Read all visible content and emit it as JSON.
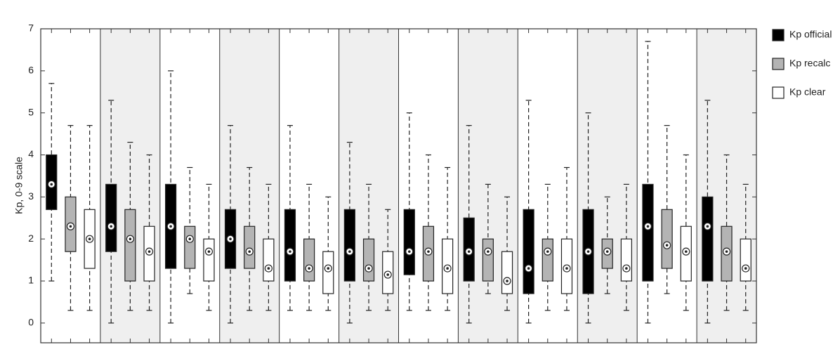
{
  "chart_data": {
    "type": "box",
    "ylabel": "Kp, 0-9 scale",
    "categories": [
      null,
      null,
      null,
      null,
      null,
      null,
      null,
      null,
      null,
      null,
      null,
      null
    ],
    "ylim": [
      -0.47,
      7
    ],
    "yticks": [
      0,
      1,
      2,
      3,
      4,
      5,
      6,
      7
    ],
    "legend": "right",
    "series": [
      {
        "name": "Kp official",
        "color": "#000000",
        "min": [
          1.0,
          0,
          0,
          0,
          0.3,
          0,
          0.3,
          0,
          0,
          0,
          0,
          0
        ],
        "q1": [
          2.7,
          1.7,
          1.3,
          1.3,
          1.0,
          1.0,
          1.15,
          1.0,
          0.7,
          0.7,
          1.0,
          1.0
        ],
        "median": [
          3.3,
          2.3,
          2.3,
          2.0,
          1.7,
          1.7,
          1.7,
          1.7,
          1.3,
          1.7,
          2.3,
          2.3
        ],
        "q3": [
          4.0,
          3.3,
          3.3,
          2.7,
          2.7,
          2.7,
          2.7,
          2.5,
          2.7,
          2.7,
          3.3,
          3.0
        ],
        "max": [
          5.7,
          5.3,
          6.0,
          4.7,
          4.7,
          4.3,
          5.0,
          4.7,
          5.3,
          5.0,
          6.7,
          5.3
        ]
      },
      {
        "name": "Kp recalc",
        "color": "#b4b4b4",
        "min": [
          0.3,
          0.3,
          0.7,
          0.3,
          0.3,
          0.3,
          0.3,
          0.7,
          0.3,
          0.7,
          0.7,
          0.3
        ],
        "q1": [
          1.7,
          1.0,
          1.3,
          1.3,
          1.0,
          1.0,
          1.0,
          1.0,
          1.0,
          1.3,
          1.3,
          1.0
        ],
        "median": [
          2.3,
          2.0,
          2.0,
          1.7,
          1.3,
          1.3,
          1.7,
          1.7,
          1.7,
          1.7,
          1.85,
          1.7
        ],
        "q3": [
          3.0,
          2.7,
          2.3,
          2.3,
          2.0,
          2.0,
          2.3,
          2.0,
          2.0,
          2.0,
          2.7,
          2.3
        ],
        "max": [
          4.7,
          4.3,
          3.7,
          3.7,
          3.3,
          3.3,
          4.0,
          3.3,
          3.3,
          3.0,
          4.7,
          4.0
        ]
      },
      {
        "name": "Kp clear",
        "color": "#ffffff",
        "min": [
          0.3,
          0.3,
          0.3,
          0.3,
          0.3,
          0.3,
          0.3,
          0.3,
          0.3,
          0.3,
          0.3,
          0.3
        ],
        "q1": [
          1.3,
          1.0,
          1.0,
          1.0,
          0.7,
          0.7,
          0.7,
          0.7,
          0.7,
          1.0,
          1.0,
          1.0
        ],
        "median": [
          2.0,
          1.7,
          1.7,
          1.3,
          1.3,
          1.15,
          1.3,
          1.0,
          1.3,
          1.3,
          1.7,
          1.3
        ],
        "q3": [
          2.7,
          2.3,
          2.0,
          2.0,
          1.7,
          1.7,
          2.0,
          1.7,
          2.0,
          2.0,
          2.3,
          2.0
        ],
        "max": [
          4.7,
          4.0,
          3.3,
          3.3,
          3.0,
          2.7,
          3.7,
          3.0,
          3.7,
          3.3,
          4.0,
          3.3
        ]
      }
    ]
  }
}
